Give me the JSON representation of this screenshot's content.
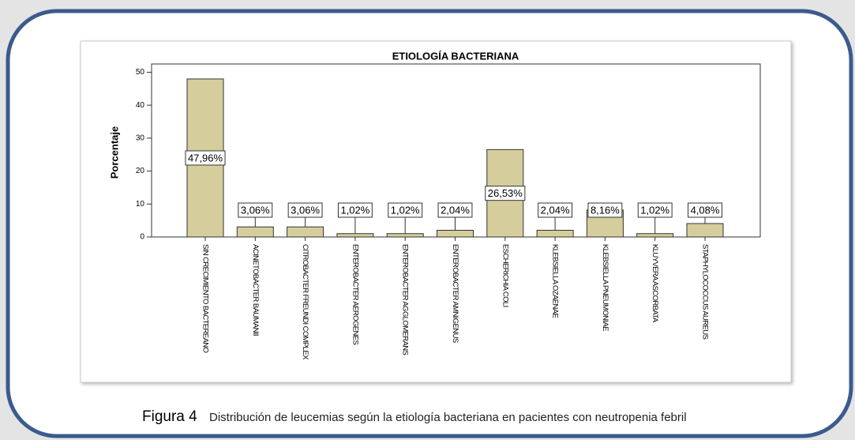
{
  "chart_data": {
    "type": "bar",
    "title": "ETIOLOGÍA BACTERIANA",
    "y_label": "Porcentaje",
    "categories": [
      "SIN CRECIMIENTO BACTEREANO",
      "ACINETOBACTER BAUMANII",
      "CITROBACTER FREUNDI COMPLEX",
      "ENTEROBACTER AEROGENES",
      "ENTEROBACTER AGGLOMERANS",
      "ENTEROBACTER AMNIGENUS",
      "ESCHERICHIA COLI",
      "KLEBSIELLA OZAENAE",
      "KLEBSIELLA PNEUMONIAE",
      "KLUYVERA ASCORBATA",
      "STAPHYLOCOCCUS AUREUS"
    ],
    "values": [
      47.96,
      3.06,
      3.06,
      1.02,
      1.02,
      2.04,
      26.53,
      2.04,
      8.16,
      1.02,
      4.08
    ],
    "value_labels": [
      "47,96%",
      "3,06%",
      "3,06%",
      "1,02%",
      "1,02%",
      "2,04%",
      "26,53%",
      "2,04%",
      "8,16%",
      "1,02%",
      "4,08%"
    ],
    "color": "#d5ce9c",
    "ylim": [
      0,
      52.5
    ],
    "yticks": [
      0,
      10,
      20,
      30,
      40,
      50
    ]
  },
  "caption": {
    "label": "Figura 4",
    "text": "Distribución de leucemias según la etiología bacteriana en pacientes con neutropenia febril"
  }
}
